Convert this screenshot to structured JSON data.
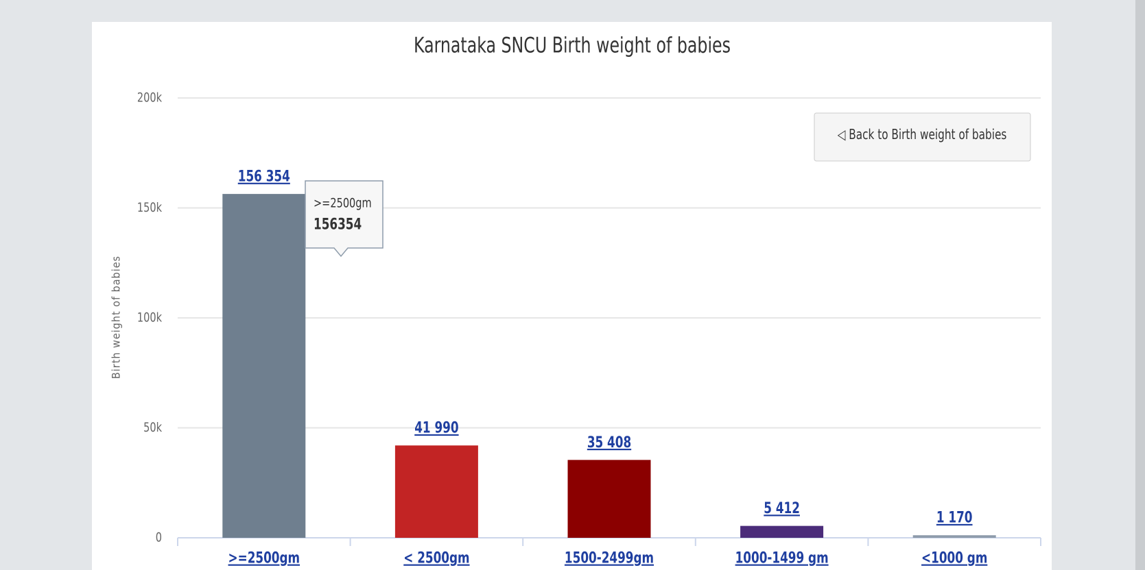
{
  "chart_data": {
    "type": "bar",
    "title": "Karnataka SNCU Birth weight of babies",
    "y_label": "Birth weight of babies",
    "button_label": "◁ Back to Birth weight of babies",
    "categories": [
      ">=2500gm",
      "< 2500gm",
      "1500-2499gm",
      "1000-1499 gm",
      "<1000 gm"
    ],
    "values": [
      156354,
      41990,
      35408,
      5412,
      1170
    ],
    "value_labels": [
      "156 354",
      "41 990",
      "35 408",
      "5 412",
      "1 170"
    ],
    "colors": [
      "#6f7f8f",
      "#c22424",
      "#8b0000",
      "#4b2c7a",
      "#8e9cab"
    ],
    "ylim": [
      0,
      200000
    ],
    "yticks": [
      0,
      {
        "value": 50000,
        "label": "50k"
      },
      {
        "value": 100000,
        "label": "100k"
      },
      {
        "value": 150000,
        "label": "150k"
      },
      {
        "value": 200000,
        "label": "200k"
      }
    ],
    "grid": true,
    "tooltip": {
      "category_index": 0
    }
  }
}
